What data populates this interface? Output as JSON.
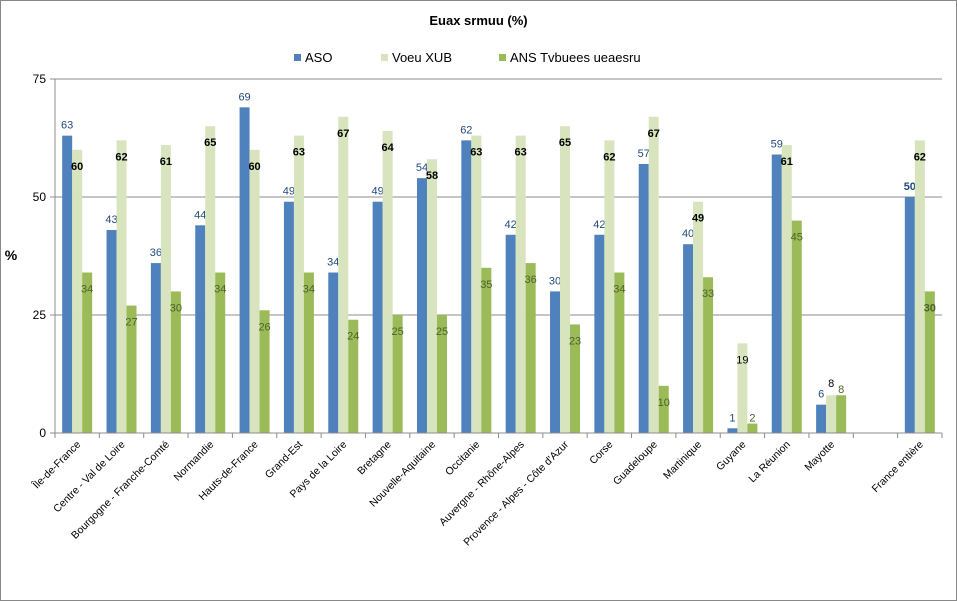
{
  "chart_data": {
    "type": "bar",
    "title": "Euax srmuu (%)",
    "ylabel": "%",
    "xlabel": "",
    "ylim": [
      0,
      75
    ],
    "yticks": [
      0,
      25,
      50,
      75
    ],
    "grid": true,
    "legend_position": "top",
    "categories": [
      "Île-de-France",
      "Centre - Val de Loire",
      "Bourgogne - Franche-Comté",
      "Normandie",
      "Hauts-de-France",
      "Grand-Est",
      "Pays de la Loire",
      "Bretagne",
      "Nouvelle-Aquitaine",
      "Occitanie",
      "Auvergne - Rhône-Alpes",
      "Provence - Alpes - Côte d'Azur",
      "Corse",
      "Guadeloupe",
      "Martinique",
      "Guyane",
      "La Réunion",
      "Mayotte",
      "",
      "France entière"
    ],
    "series": [
      {
        "name": "ASO",
        "color": "#4f81bd",
        "label_color": "#1f497d",
        "values": [
          63,
          43,
          36,
          44,
          69,
          49,
          34,
          49,
          54,
          62,
          42,
          30,
          42,
          57,
          40,
          1,
          59,
          6,
          null,
          50
        ],
        "labels": [
          "63",
          "43",
          "36",
          "44",
          "69",
          "49",
          "34",
          "49",
          "54",
          "62",
          "42",
          "30",
          "42",
          "57",
          "40",
          "1",
          "59",
          "6",
          "",
          "50"
        ]
      },
      {
        "name": "Voeu XUB",
        "color": "#d7e4bd",
        "label_color": "#000000",
        "values": [
          60,
          62,
          61,
          65,
          60,
          63,
          67,
          64,
          58,
          63,
          63,
          65,
          62,
          67,
          49,
          19,
          61,
          8,
          null,
          62
        ],
        "labels": [
          "60",
          "62",
          "61",
          "65",
          "60",
          "63",
          "67",
          "64",
          "58",
          "63",
          "63",
          "65",
          "62",
          "67",
          "49",
          "19",
          "61",
          "8",
          "",
          "62"
        ]
      },
      {
        "name": "ANS Tvbuees ueaesru",
        "color": "#9bbb59",
        "label_color": "#4f6228",
        "values": [
          34,
          27,
          30,
          34,
          26,
          34,
          24,
          25,
          25,
          35,
          36,
          23,
          34,
          10,
          33,
          2,
          45,
          8,
          null,
          30
        ],
        "labels": [
          "34",
          "27",
          "30",
          "34",
          "26",
          "34",
          "24",
          "25",
          "25",
          "35",
          "36",
          "23",
          "34",
          "10",
          "33",
          "2",
          "45",
          "8",
          "",
          "30"
        ]
      }
    ]
  }
}
